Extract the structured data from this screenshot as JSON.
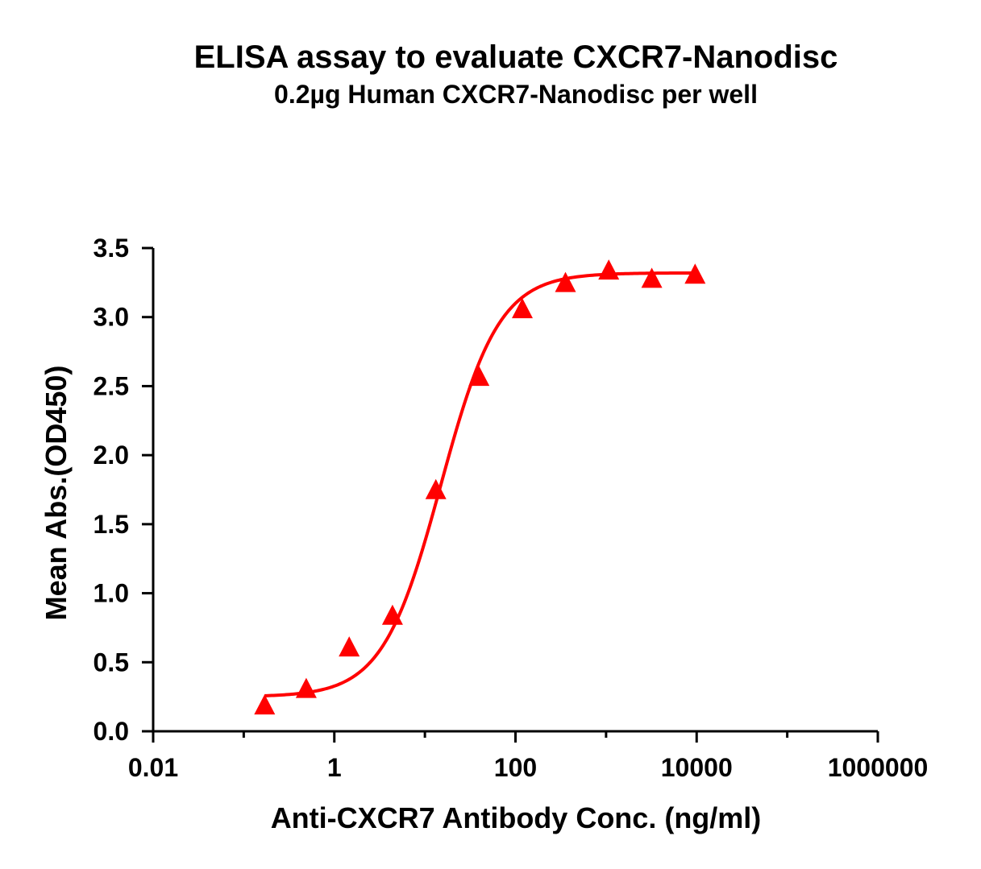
{
  "chart_data": {
    "type": "scatter",
    "title": "ELISA assay to evaluate CXCR7-Nanodisc",
    "subtitle": "0.2µg Human CXCR7-Nanodisc per well",
    "xlabel": "Anti-CXCR7 Antibody Conc. (ng/ml)",
    "ylabel": "Mean Abs.(OD450)",
    "x_scale": "log10",
    "xlim": [
      0.01,
      1000000
    ],
    "ylim": [
      0,
      3.5
    ],
    "x_ticks": [
      0.01,
      1,
      100,
      10000,
      1000000
    ],
    "x_tick_labels": [
      "0.01",
      "1",
      "100",
      "10000",
      "1000000"
    ],
    "y_ticks": [
      0.0,
      0.5,
      1.0,
      1.5,
      2.0,
      2.5,
      3.0,
      3.5
    ],
    "y_tick_labels": [
      "0.0",
      "0.5",
      "1.0",
      "1.5",
      "2.0",
      "2.5",
      "3.0",
      "3.5"
    ],
    "grid": false,
    "marker": "triangle",
    "color": "#ff0000",
    "series": [
      {
        "x": [
          0.17,
          0.49,
          1.46,
          4.39,
          13.2,
          39.5,
          119,
          356,
          1070,
          3200,
          9600
        ],
        "y": [
          0.18,
          0.3,
          0.6,
          0.83,
          1.74,
          2.56,
          3.05,
          3.24,
          3.33,
          3.27,
          3.3
        ]
      }
    ],
    "fit_curve": {
      "model": "4PL",
      "bottom": 0.25,
      "top": 3.32,
      "ec50": 15,
      "hill": 1.35,
      "x_range": [
        0.17,
        9600
      ]
    }
  }
}
